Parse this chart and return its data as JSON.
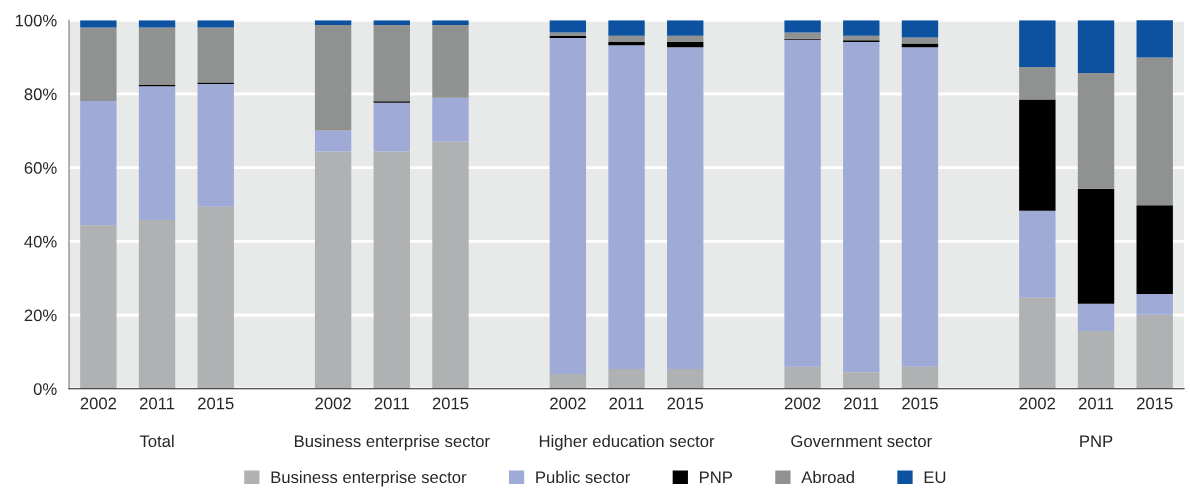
{
  "chart_data": {
    "type": "bar",
    "stacked": true,
    "categories": [
      "2002",
      "2011",
      "2015",
      null,
      "2002",
      "2011",
      "2015",
      null,
      "2002",
      "2011",
      "2015",
      null,
      "2002",
      "2011",
      "2015",
      null,
      "2002",
      "2011",
      "2015"
    ],
    "series": [
      {
        "name": "Business enterprise sector",
        "color": "#b0b1b2",
        "values": [
          44.4,
          45.8,
          49.4,
          null,
          64.4,
          64.4,
          67.1,
          null,
          4.0,
          5.4,
          5.4,
          null,
          6.0,
          4.5,
          6.0,
          null,
          24.7,
          15.7,
          20.1
        ]
      },
      {
        "name": "Public sector",
        "color": "#9faad6",
        "values": [
          33.7,
          36.3,
          33.3,
          null,
          5.7,
          13.2,
          11.9,
          null,
          91.2,
          87.8,
          87.3,
          null,
          88.7,
          89.6,
          86.7,
          null,
          23.6,
          7.4,
          5.6
        ]
      },
      {
        "name": "PNP",
        "color": "#000000",
        "values": [
          0,
          0.3,
          0.4,
          null,
          0,
          0.4,
          0,
          null,
          0.5,
          0.9,
          1.4,
          null,
          0.3,
          0.5,
          1.0,
          null,
          30.2,
          31.2,
          24.1
        ]
      },
      {
        "name": "Abroad",
        "color": "#909291",
        "values": [
          19.9,
          15.6,
          14.9,
          null,
          28.6,
          20.7,
          19.7,
          null,
          1.0,
          1.7,
          1.7,
          null,
          1.7,
          1.2,
          1.6,
          null,
          8.8,
          31.4,
          40.1
        ]
      },
      {
        "name": "EU",
        "color": "#0d52a0",
        "values": [
          2.0,
          2.0,
          2.0,
          null,
          1.3,
          1.3,
          1.3,
          null,
          3.3,
          4.2,
          4.2,
          null,
          3.3,
          4.2,
          4.7,
          null,
          12.7,
          14.3,
          10.2
        ]
      }
    ],
    "annotations": [
      "Total",
      "Business enterprise sector",
      "Higher education sector",
      "Government sector",
      "PNP"
    ],
    "ylim": [
      0,
      100
    ],
    "yticks": [
      {
        "value": 0,
        "label": "0%"
      },
      {
        "value": 20,
        "label": "20%"
      },
      {
        "value": 40,
        "label": "40%"
      },
      {
        "value": 60,
        "label": "60%"
      },
      {
        "value": 80,
        "label": "80%"
      },
      {
        "value": 100,
        "label": "100%"
      }
    ],
    "grid": "y",
    "legend": "bottom"
  }
}
